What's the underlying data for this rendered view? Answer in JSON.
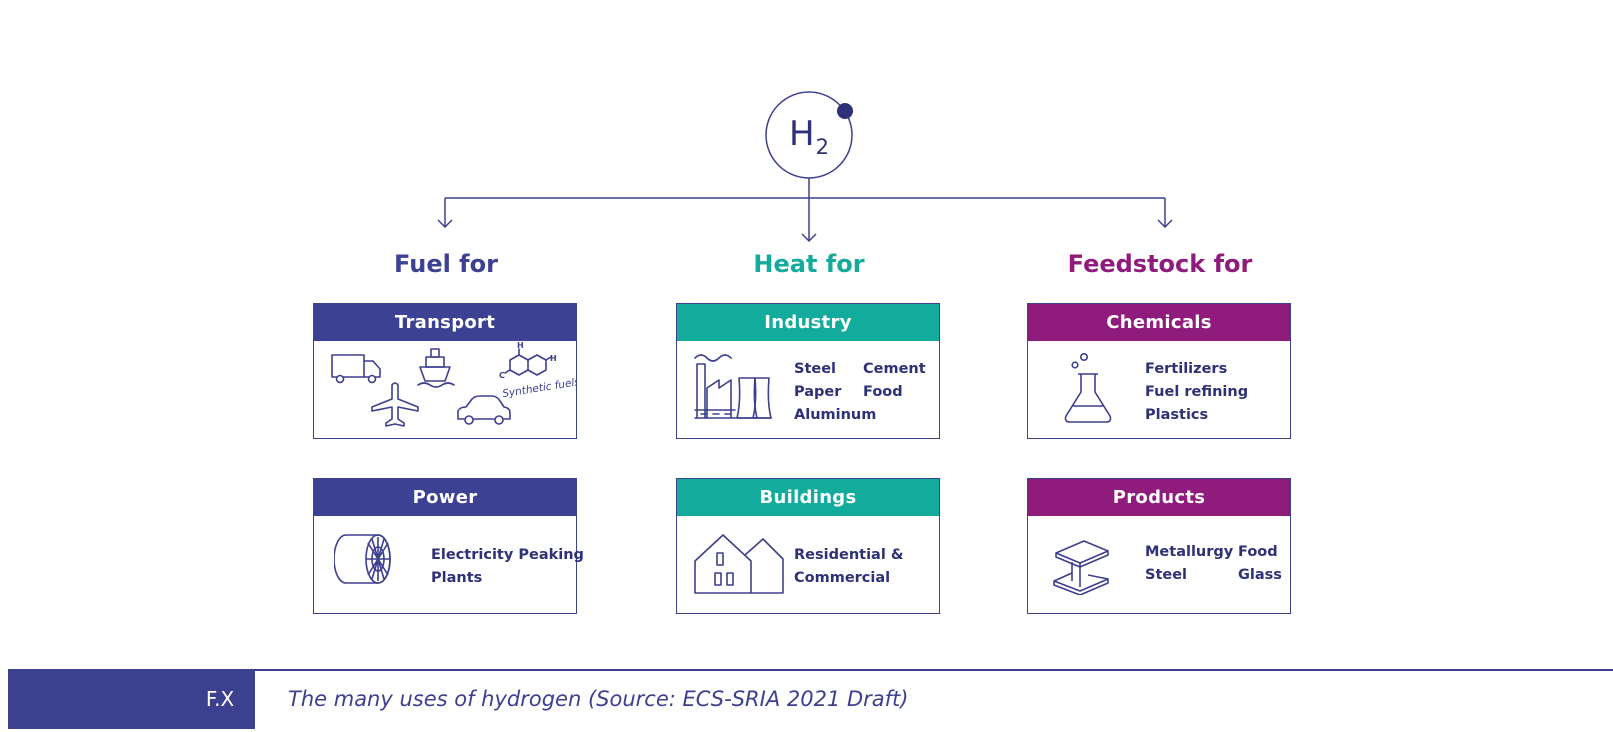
{
  "colors": {
    "fuel": "#3d4194",
    "heat": "#13ac9c",
    "feedstock": "#8f1b7c",
    "outline": "#3d3f8f",
    "dark_text": "#2e3178"
  },
  "root": {
    "label_main": "H",
    "label_sub": "2"
  },
  "columns": [
    {
      "id": "fuel",
      "heading": "Fuel for",
      "cards": [
        {
          "title": "Transport",
          "icon": "transport-icons",
          "icon_text": "Synthetic fuels",
          "items": []
        },
        {
          "title": "Power",
          "icon": "turbine-icon",
          "items": [
            [
              "Electricity Peaking",
              "Plants"
            ]
          ]
        }
      ]
    },
    {
      "id": "heat",
      "heading": "Heat for",
      "cards": [
        {
          "title": "Industry",
          "icon": "factory-icon",
          "items": [
            [
              "Steel",
              "Paper",
              "Aluminum"
            ],
            [
              "Cement",
              "Food"
            ]
          ]
        },
        {
          "title": "Buildings",
          "icon": "houses-icon",
          "items": [
            [
              "Residential &",
              "Commercial"
            ]
          ]
        }
      ]
    },
    {
      "id": "feedstock",
      "heading": "Feedstock for",
      "cards": [
        {
          "title": "Chemicals",
          "icon": "flask-icon",
          "items": [
            [
              "Fertilizers",
              "Fuel refining",
              "Plastics"
            ]
          ]
        },
        {
          "title": "Products",
          "icon": "steel-beam-icon",
          "items": [
            [
              "Metallurgy",
              "Steel"
            ],
            [
              "Food",
              "Glass"
            ]
          ]
        }
      ]
    }
  ],
  "figure": {
    "number": "F.X",
    "caption": "The many uses of hydrogen (Source: ECS-SRIA 2021 Draft)"
  }
}
